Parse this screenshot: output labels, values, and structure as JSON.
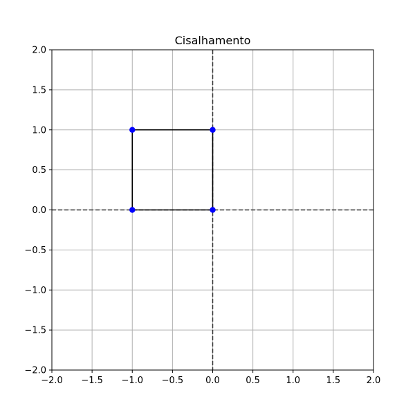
{
  "chart_data": {
    "type": "line",
    "title": "Cisalhamento",
    "xlabel": "",
    "ylabel": "",
    "xlim": [
      -2.0,
      2.0
    ],
    "ylim": [
      -2.0,
      2.0
    ],
    "grid": true,
    "x_ticks": [
      -2.0,
      -1.5,
      -1.0,
      -0.5,
      0.0,
      0.5,
      1.0,
      1.5,
      2.0
    ],
    "y_ticks": [
      -2.0,
      -1.5,
      -1.0,
      -0.5,
      0.0,
      0.5,
      1.0,
      1.5,
      2.0
    ],
    "x_tick_labels": [
      "−2.0",
      "−1.5",
      "−1.0",
      "−0.5",
      "0.0",
      "0.5",
      "1.0",
      "1.5",
      "2.0"
    ],
    "y_tick_labels": [
      "−2.0",
      "−1.5",
      "−1.0",
      "−0.5",
      "0.0",
      "0.5",
      "1.0",
      "1.5",
      "2.0"
    ],
    "reference_lines": [
      {
        "orientation": "horizontal",
        "value": 0.0,
        "style": "dashed"
      },
      {
        "orientation": "vertical",
        "value": 0.0,
        "style": "dashed"
      }
    ],
    "series": [
      {
        "line_color": "#000000",
        "marker_color": "#0000ff",
        "closed": true,
        "points": [
          {
            "x": -1.0,
            "y": 0.0
          },
          {
            "x": 0.0,
            "y": 0.0
          },
          {
            "x": 0.0,
            "y": 1.0
          },
          {
            "x": -1.0,
            "y": 1.0
          }
        ]
      }
    ]
  }
}
